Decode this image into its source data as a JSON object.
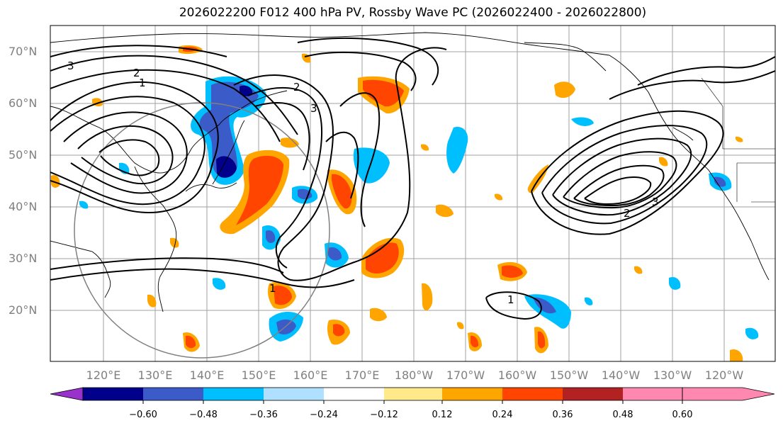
{
  "title": "2026022200 F012 400 hPa PV, Rossby Wave PC (2026022400 - 2026022800)",
  "map": {
    "lat_labels": [
      "70°N",
      "60°N",
      "50°N",
      "40°N",
      "30°N",
      "20°N"
    ],
    "lon_labels": [
      "120°E",
      "130°E",
      "140°E",
      "150°E",
      "160°E",
      "170°E",
      "180°W",
      "170°W",
      "160°W",
      "150°W",
      "140°W",
      "130°W",
      "120°W"
    ],
    "contour_labels": [
      "1",
      "2",
      "3",
      "1",
      "2",
      "3",
      "1",
      "2",
      "3"
    ]
  },
  "colorbar": {
    "colors": [
      "#9932CC",
      "#00008B",
      "#3A5BC8",
      "#00BFFF",
      "#B0E0FF",
      "#FFFFFF",
      "#FFE98A",
      "#FFA500",
      "#FF4500",
      "#B22222",
      "#FF88B0"
    ],
    "tick_labels": [
      "−0.60",
      "−0.48",
      "−0.36",
      "−0.24",
      "−0.12",
      "0.12",
      "0.24",
      "0.36",
      "0.48",
      "0.60"
    ]
  }
}
